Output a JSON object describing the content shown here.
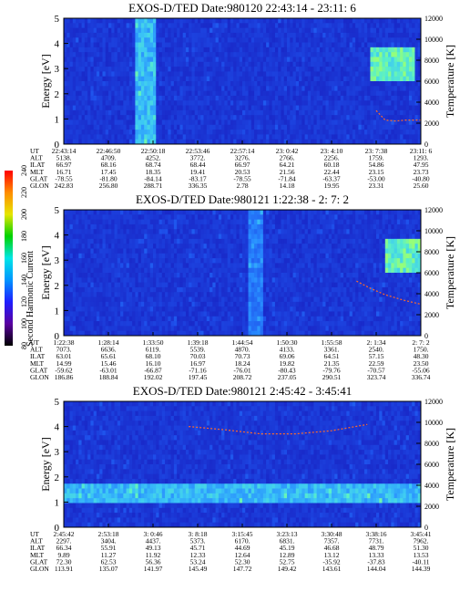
{
  "figure": {
    "colorbar": {
      "label": "Second Harmonic Current",
      "ticks": [
        "80",
        "100",
        "120",
        "140",
        "160",
        "180",
        "200",
        "220",
        "240"
      ],
      "stops": [
        "#000000",
        "#5a00a0",
        "#1e1eff",
        "#0096ff",
        "#00e6e6",
        "#00d200",
        "#e6e600",
        "#ff8c00",
        "#ff0000"
      ]
    },
    "orbit_row_labels": [
      "UT",
      "ALT",
      "ILAT",
      "MLT",
      "GLAT",
      "GLON"
    ]
  },
  "chart_data": [
    {
      "type": "heatmap",
      "title": "EXOS-D/TED   Date:980120  22:43:14 - 23:11: 6",
      "ylabel": "Energy [eV]",
      "y2label": "Temperature [K]",
      "ylim": [
        0,
        5
      ],
      "y2lim": [
        0,
        12000
      ],
      "yticks": [
        "0",
        "1",
        "2",
        "3",
        "4",
        "5"
      ],
      "y2ticks": [
        "0",
        "2000",
        "4000",
        "6000",
        "8000",
        "10000",
        "12000"
      ],
      "orbit_table": [
        [
          "22:43:14",
          "22:46:50",
          "22:50:18",
          "22:53:46",
          "22:57:14",
          "23: 0:42",
          "23: 4:10",
          "23: 7:38",
          "23:11: 6"
        ],
        [
          "5138.",
          "4709.",
          "4252.",
          "3772.",
          "3276.",
          "2766.",
          "2256.",
          "1759.",
          "1293."
        ],
        [
          "66.97",
          "68.16",
          "68.74",
          "68.44",
          "66.97",
          "64.21",
          "60.18",
          "54.86",
          "47.95"
        ],
        [
          "16.71",
          "17.45",
          "18.35",
          "19.41",
          "20.53",
          "21.56",
          "22.44",
          "23.15",
          "23.73"
        ],
        [
          "-78.55",
          "-81.80",
          "-84.14",
          "-83.17",
          "-78.55",
          "-71.84",
          "-63.37",
          "-53.00",
          "-40.80"
        ],
        [
          "242.83",
          "256.80",
          "288.71",
          "336.35",
          "2.78",
          "14.18",
          "19.95",
          "23.31",
          "25.60"
        ]
      ],
      "temperature_trace_K": [
        {
          "t": 0.875,
          "K": 3200
        },
        {
          "t": 0.9,
          "K": 2300
        },
        {
          "t": 0.93,
          "K": 2200
        },
        {
          "t": 0.96,
          "K": 2300
        },
        {
          "t": 1.0,
          "K": 2300
        }
      ],
      "features": [
        {
          "t0": 0.2,
          "t1": 0.26,
          "emin": 0,
          "emax": 5,
          "level": "cyan-band"
        },
        {
          "t0": 0.86,
          "t1": 0.98,
          "emin": 2.5,
          "emax": 3.8,
          "level": "high-energy-green"
        }
      ]
    },
    {
      "type": "heatmap",
      "title": "EXOS-D/TED   Date:980121  1:22:38 - 2: 7: 2",
      "ylabel": "Energy [eV]",
      "y2label": "Temperature [K]",
      "ylim": [
        0,
        5
      ],
      "y2lim": [
        0,
        12000
      ],
      "yticks": [
        "0",
        "1",
        "2",
        "3",
        "4",
        "5"
      ],
      "y2ticks": [
        "0",
        "2000",
        "4000",
        "6000",
        "8000",
        "10000",
        "12000"
      ],
      "orbit_table": [
        [
          "1:22:38",
          "1:28:14",
          "1:33:50",
          "1:39:18",
          "1:44:54",
          "1:50:30",
          "1:55:58",
          "2: 1:34",
          "2: 7: 2"
        ],
        [
          "7073.",
          "6636.",
          "6119.",
          "5539.",
          "4870.",
          "4133.",
          "3361.",
          "2540.",
          "1750."
        ],
        [
          "63.01",
          "65.61",
          "68.10",
          "70.03",
          "70.73",
          "69.06",
          "64.51",
          "57.15",
          "48.30"
        ],
        [
          "14.99",
          "15.46",
          "16.10",
          "16.97",
          "18.24",
          "19.82",
          "21.35",
          "22.59",
          "23.50"
        ],
        [
          "-59.62",
          "-63.01",
          "-66.87",
          "-71.16",
          "-76.01",
          "-80.43",
          "-79.76",
          "-70.57",
          "-55.06"
        ],
        [
          "186.86",
          "188.84",
          "192.02",
          "197.45",
          "208.72",
          "237.05",
          "290.51",
          "323.74",
          "336.74"
        ]
      ],
      "temperature_trace_K": [
        {
          "t": 0.82,
          "K": 5200
        },
        {
          "t": 0.86,
          "K": 4500
        },
        {
          "t": 0.9,
          "K": 3900
        },
        {
          "t": 0.95,
          "K": 3400
        },
        {
          "t": 1.0,
          "K": 3000
        }
      ],
      "features": [
        {
          "t0": 0.52,
          "t1": 0.56,
          "emin": 0,
          "emax": 5,
          "level": "band"
        },
        {
          "t0": 0.9,
          "t1": 1.0,
          "emin": 2.5,
          "emax": 3.8,
          "level": "high-energy-green"
        }
      ]
    },
    {
      "type": "heatmap",
      "title": "EXOS-D/TED   Date:980121  2:45:42 - 3:45:41",
      "ylabel": "Energy [eV]",
      "y2label": "Temperature [K]",
      "ylim": [
        0,
        5
      ],
      "y2lim": [
        0,
        12000
      ],
      "yticks": [
        "0",
        "1",
        "2",
        "3",
        "4",
        "5"
      ],
      "y2ticks": [
        "0",
        "2000",
        "4000",
        "6000",
        "8000",
        "10000",
        "12000"
      ],
      "orbit_table": [
        [
          "2:45:42",
          "2:53:18",
          "3: 0:46",
          "3: 8:18",
          "3:15:45",
          "3:23:13",
          "3:30:48",
          "3:38:16",
          "3:45:41"
        ],
        [
          "2297.",
          "3404.",
          "4437.",
          "5373.",
          "6170.",
          "6831.",
          "7357.",
          "7731.",
          "7962."
        ],
        [
          "66.34",
          "55.91",
          "49.13",
          "45.71",
          "44.69",
          "45.19",
          "46.68",
          "48.79",
          "51.30"
        ],
        [
          "9.89",
          "11.27",
          "11.92",
          "12.33",
          "12.64",
          "12.89",
          "13.12",
          "13.33",
          "13.53"
        ],
        [
          "72.30",
          "62.53",
          "56.36",
          "53.24",
          "52.30",
          "52.75",
          "-35.92",
          "-37.83",
          "-40.11"
        ],
        [
          "113.91",
          "135.07",
          "141.97",
          "145.49",
          "147.72",
          "149.42",
          "143.61",
          "144.04",
          "144.39"
        ]
      ],
      "temperature_trace_K": [
        {
          "t": 0.35,
          "K": 9600
        },
        {
          "t": 0.45,
          "K": 9300
        },
        {
          "t": 0.55,
          "K": 8900
        },
        {
          "t": 0.65,
          "K": 8900
        },
        {
          "t": 0.75,
          "K": 9200
        },
        {
          "t": 0.85,
          "K": 9800
        }
      ],
      "features": [
        {
          "t0": 0.0,
          "t1": 1.0,
          "emin": 1.0,
          "emax": 1.8,
          "level": "cyan-band"
        }
      ]
    }
  ]
}
